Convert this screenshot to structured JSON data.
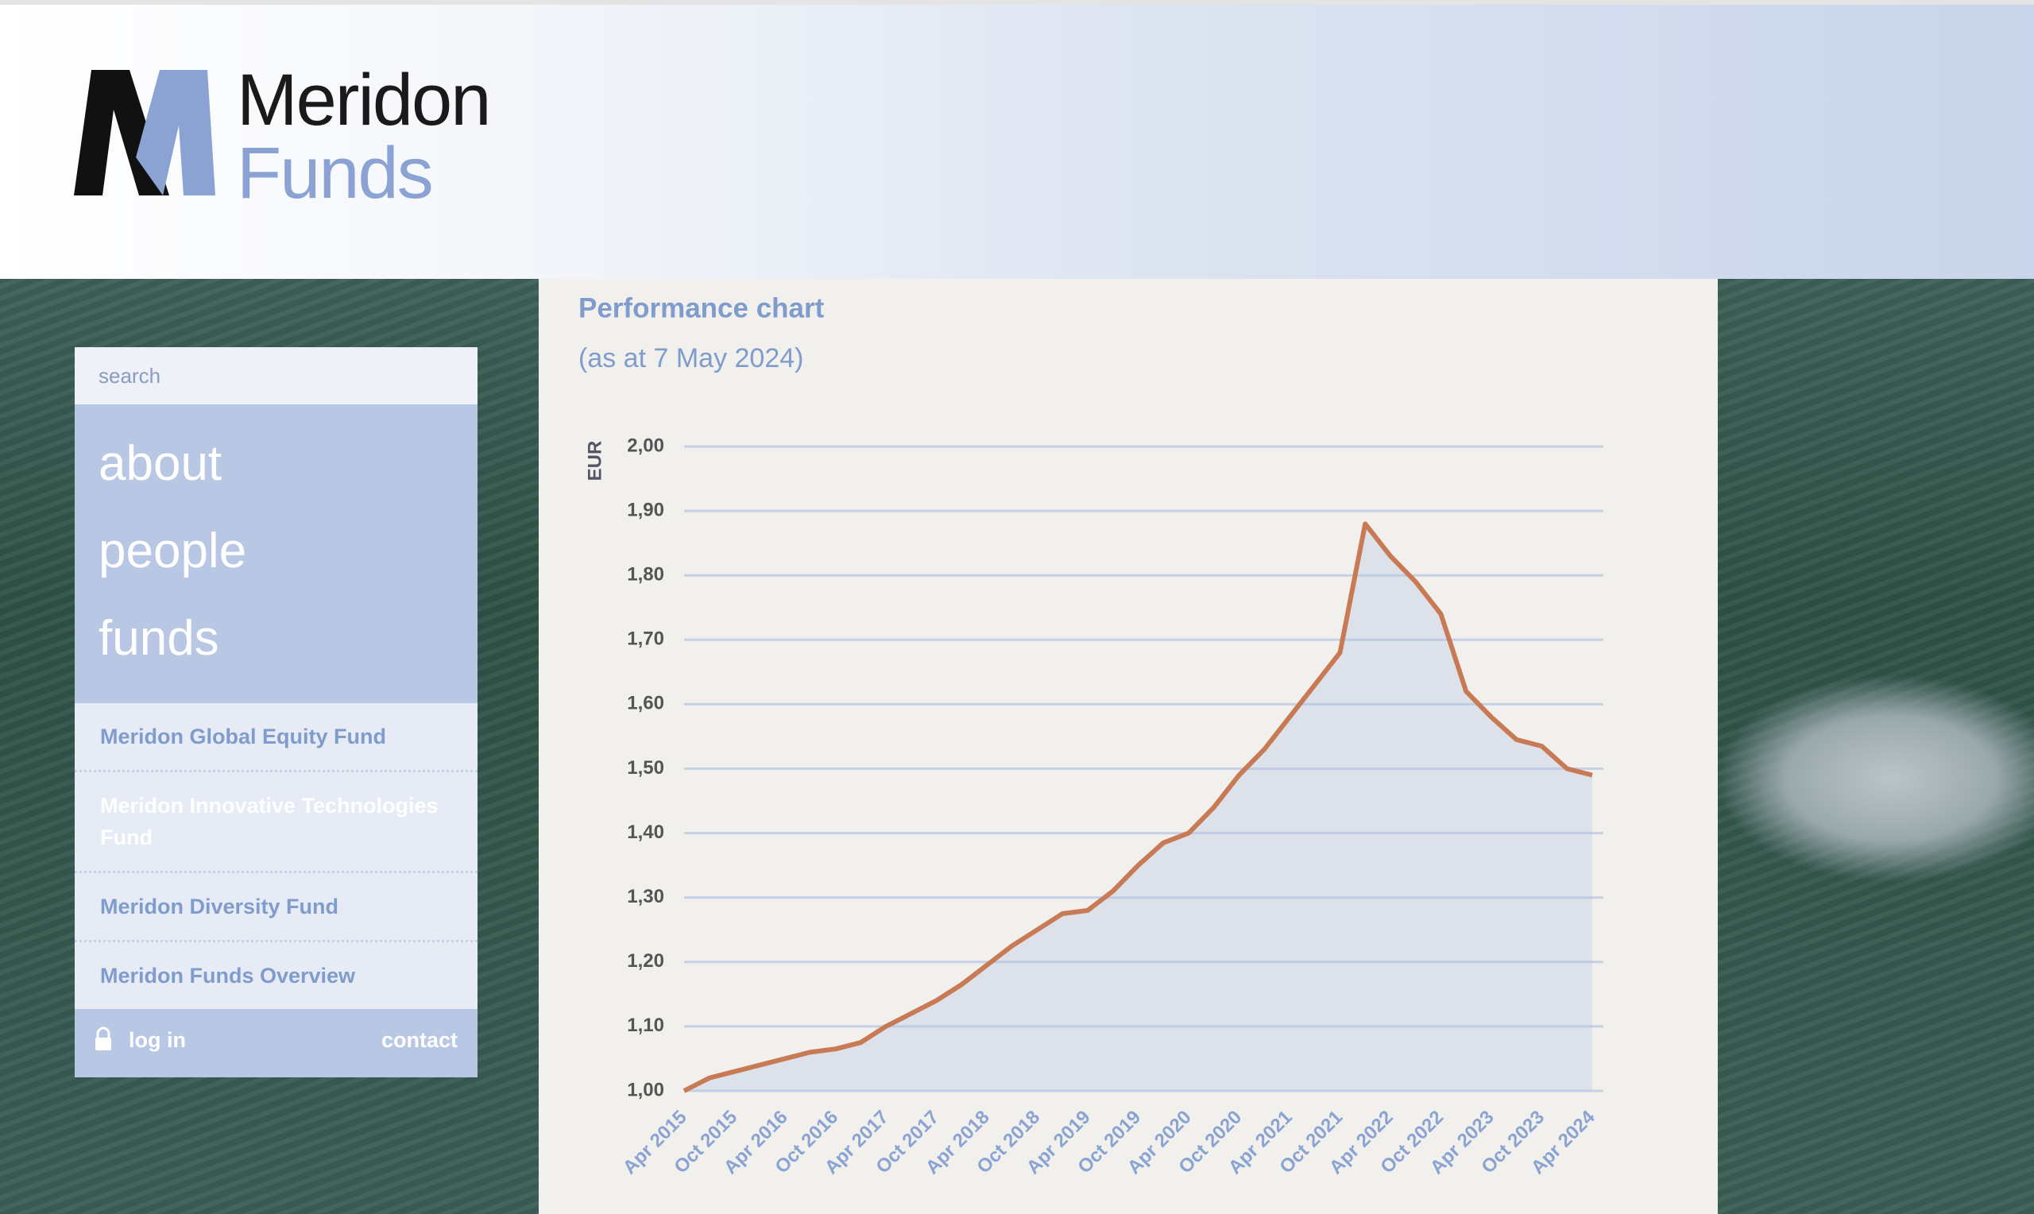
{
  "header": {
    "logo_top": "Meridon",
    "logo_bottom": "Funds"
  },
  "sidebar": {
    "search": "search",
    "nav": [
      "about",
      "people",
      "funds"
    ],
    "funds": [
      "Meridon Global Equity Fund",
      "Meridon Innovative Technologies Fund",
      "Meridon Diversity Fund",
      "Meridon Funds Overview"
    ],
    "login": "log in",
    "contact": "contact"
  },
  "chart_data": {
    "type": "line",
    "title": "Performance chart",
    "subtitle": "(as at 7 May 2024)",
    "y_label": "EUR",
    "categories": [
      "Apr 2015",
      null,
      "Oct 2015",
      null,
      "Apr 2016",
      null,
      "Oct 2016",
      null,
      "Apr 2017",
      null,
      "Oct 2017",
      null,
      "Apr 2018",
      null,
      "Oct 2018",
      null,
      "Apr 2019",
      null,
      "Oct 2019",
      null,
      "Apr 2020",
      null,
      "Oct 2020",
      null,
      "Apr 2021",
      null,
      "Oct 2021",
      null,
      "Apr 2022",
      null,
      "Oct 2022",
      null,
      "Apr 2023",
      null,
      "Oct 2023",
      null,
      "Apr 2024"
    ],
    "values": [
      1.0,
      1.02,
      1.03,
      1.04,
      1.05,
      1.06,
      1.065,
      1.075,
      1.1,
      1.12,
      1.14,
      1.165,
      1.195,
      1.225,
      1.25,
      1.275,
      1.28,
      1.31,
      1.35,
      1.385,
      1.4,
      1.44,
      1.49,
      1.53,
      1.58,
      1.63,
      1.68,
      1.88,
      1.83,
      1.79,
      1.74,
      1.62,
      1.58,
      1.545,
      1.535,
      1.5,
      1.49
    ],
    "color": "#c87a55",
    "fill": true,
    "ylim": [
      1.0,
      2.0
    ],
    "yticks": [
      {
        "value": 1.0,
        "label": "1,00"
      },
      {
        "value": 1.1,
        "label": "1,10"
      },
      {
        "value": 1.2,
        "label": "1,20"
      },
      {
        "value": 1.3,
        "label": "1,30"
      },
      {
        "value": 1.4,
        "label": "1,40"
      },
      {
        "value": 1.5,
        "label": "1,50"
      },
      {
        "value": 1.6,
        "label": "1,60"
      },
      {
        "value": 1.7,
        "label": "1,70"
      },
      {
        "value": 1.8,
        "label": "1,80"
      },
      {
        "value": 1.9,
        "label": "1,90"
      },
      {
        "value": 2.0,
        "label": "2,00"
      }
    ],
    "grid": true
  }
}
